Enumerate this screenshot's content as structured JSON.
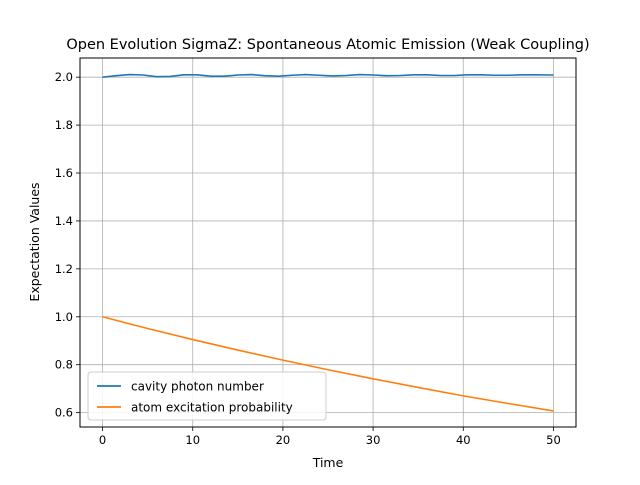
{
  "chart_data": {
    "type": "line",
    "title": "Open Evolution SigmaZ: Spontaneous Atomic Emission (Weak Coupling)",
    "xlabel": "Time",
    "ylabel": "Expectation Values",
    "xlim": [
      -2.5,
      52.5
    ],
    "ylim": [
      0.54,
      2.08
    ],
    "xticks": [
      0,
      10,
      20,
      30,
      40,
      50
    ],
    "yticks": [
      0.6,
      0.8,
      1.0,
      1.2,
      1.4,
      1.6,
      1.8,
      2.0
    ],
    "xtick_labels": [
      "0",
      "10",
      "20",
      "30",
      "40",
      "50"
    ],
    "ytick_labels": [
      "0.6",
      "0.8",
      "1.0",
      "1.2",
      "1.4",
      "1.6",
      "1.8",
      "2.0"
    ],
    "grid": true,
    "legend_position": "lower-left",
    "series": [
      {
        "name": "cavity photon number",
        "color": "#1f77b4",
        "x": [
          0,
          1.5,
          3,
          4.5,
          6,
          7.5,
          9,
          10.5,
          12,
          13.5,
          15,
          16.5,
          18,
          19.5,
          21,
          22.5,
          24,
          25.5,
          27,
          28.5,
          30,
          31.5,
          33,
          34.5,
          36,
          37.5,
          39,
          40.5,
          42,
          43.5,
          45,
          46.5,
          48,
          49.5,
          50
        ],
        "y": [
          2.0,
          2.006,
          2.011,
          2.009,
          2.002,
          2.003,
          2.01,
          2.01,
          2.004,
          2.004,
          2.009,
          2.011,
          2.006,
          2.004,
          2.008,
          2.011,
          2.008,
          2.005,
          2.007,
          2.011,
          2.009,
          2.006,
          2.007,
          2.01,
          2.01,
          2.007,
          2.007,
          2.01,
          2.01,
          2.008,
          2.008,
          2.01,
          2.01,
          2.009,
          2.009
        ]
      },
      {
        "name": "atom excitation probability",
        "color": "#ff7f0e",
        "x": [
          0,
          5,
          10,
          15,
          20,
          25,
          30,
          35,
          40,
          45,
          50
        ],
        "y": [
          1.0,
          0.951,
          0.905,
          0.861,
          0.819,
          0.779,
          0.741,
          0.705,
          0.67,
          0.638,
          0.607
        ]
      }
    ]
  }
}
